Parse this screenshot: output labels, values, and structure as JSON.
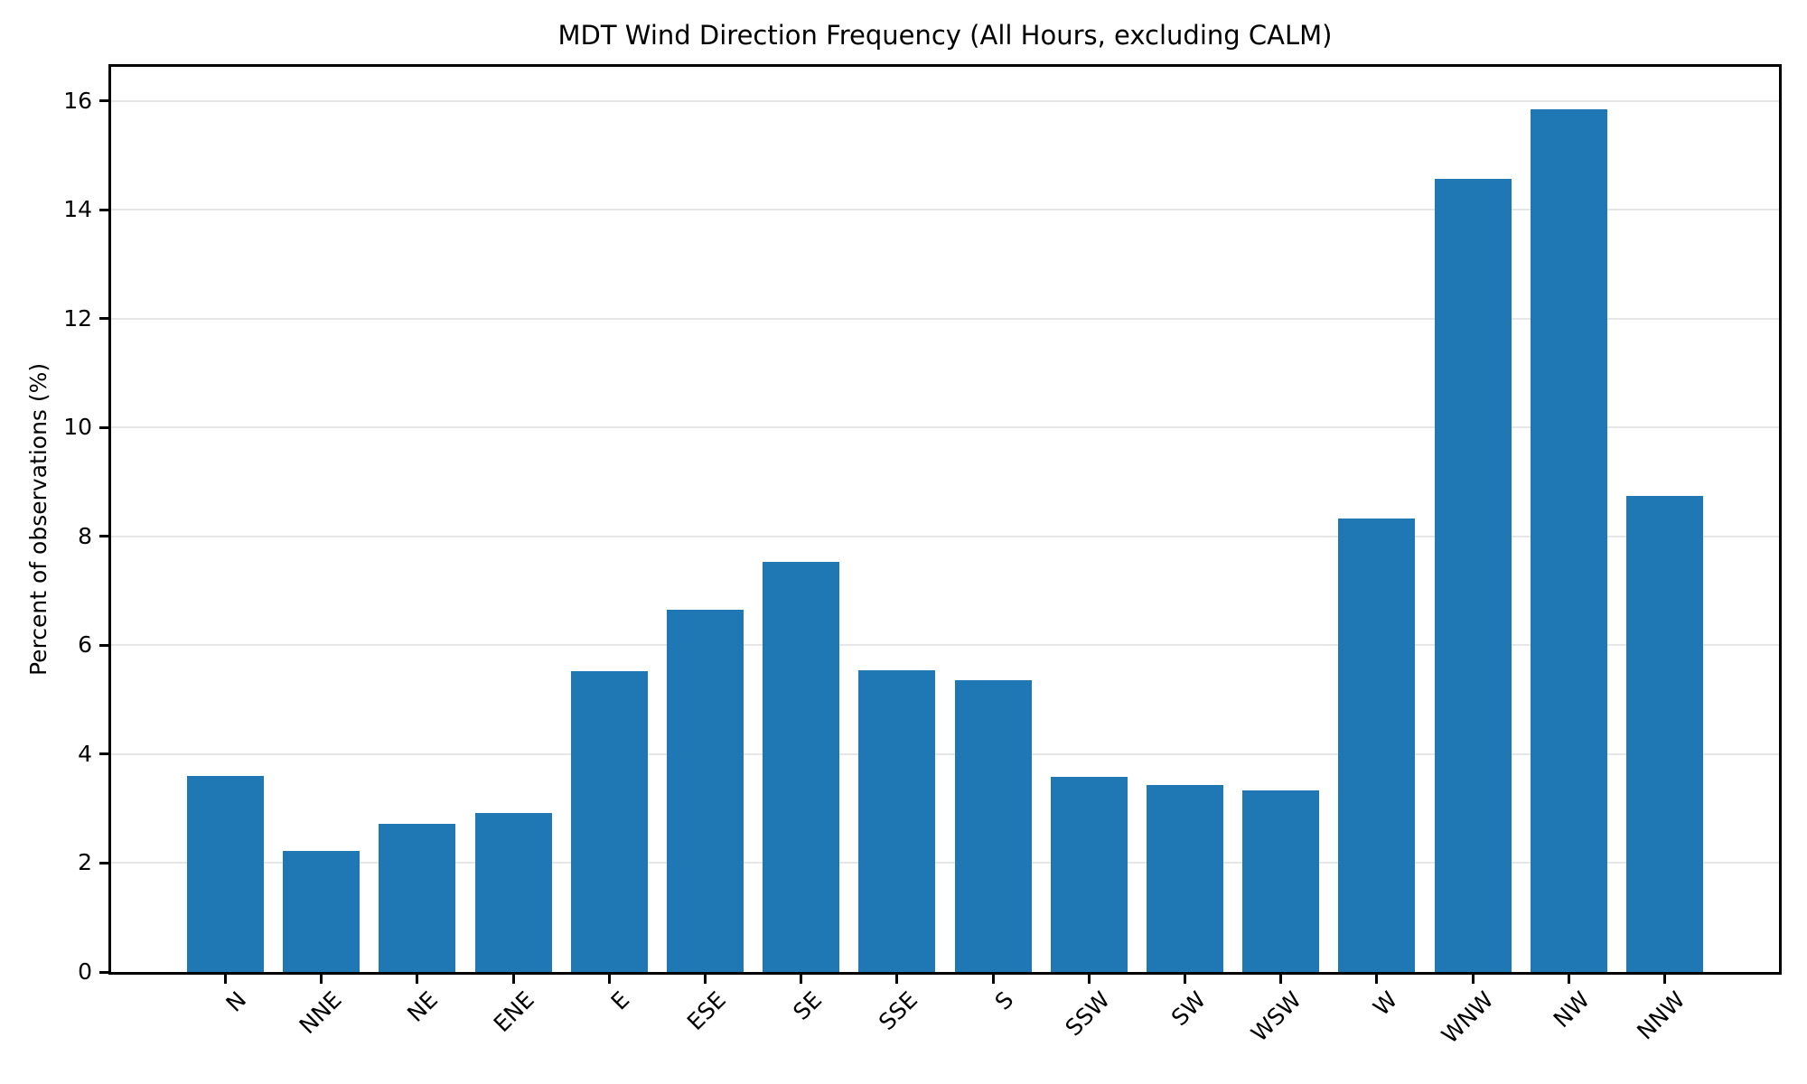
{
  "figure": {
    "background": "#ffffff"
  },
  "chart_data": {
    "type": "bar",
    "title": "MDT Wind Direction Frequency (All Hours, excluding CALM)",
    "xlabel": "",
    "ylabel": "Percent of observations (%)",
    "categories": [
      "N",
      "NNE",
      "NE",
      "ENE",
      "E",
      "ESE",
      "SE",
      "SSE",
      "S",
      "SSW",
      "SW",
      "WSW",
      "W",
      "WNW",
      "NW",
      "NNW"
    ],
    "values": [
      3.6,
      2.23,
      2.73,
      2.92,
      5.53,
      6.65,
      7.53,
      5.55,
      5.36,
      3.58,
      3.44,
      3.33,
      8.33,
      14.57,
      15.85,
      8.75
    ],
    "yticks": [
      0,
      2,
      4,
      6,
      8,
      10,
      12,
      14,
      16
    ],
    "ylim": [
      0,
      16.63
    ],
    "grid": true,
    "legend": false,
    "x_tick_rotation": 45,
    "bar_color": "#1f77b4",
    "grid_color": "#e6e6e6",
    "axis_color": "#000000"
  }
}
